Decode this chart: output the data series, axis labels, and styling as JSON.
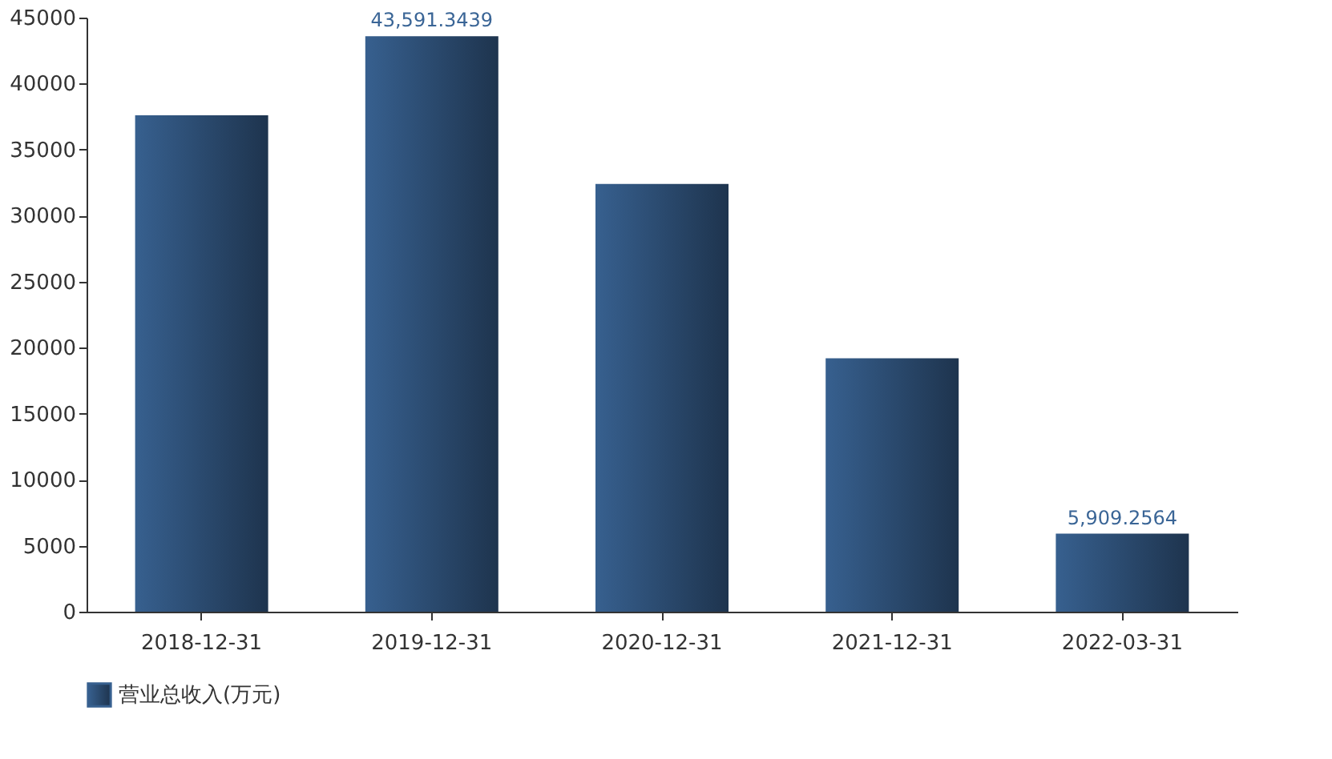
{
  "chart_data": {
    "type": "bar",
    "categories": [
      "2018-12-31",
      "2019-12-31",
      "2020-12-31",
      "2021-12-31",
      "2022-03-31"
    ],
    "series": [
      {
        "name": "营业总收入(万元)",
        "color": "#37608f",
        "values": [
          37600,
          43591.3439,
          32400,
          19200,
          5909.2564
        ],
        "value_labels": [
          null,
          "43,591.3439",
          null,
          null,
          "5,909.2564"
        ]
      }
    ],
    "ylim": [
      0,
      45000
    ],
    "yticks": [
      0,
      5000,
      10000,
      15000,
      20000,
      25000,
      30000,
      35000,
      40000,
      45000
    ],
    "grid": false,
    "legend": "bottom"
  }
}
